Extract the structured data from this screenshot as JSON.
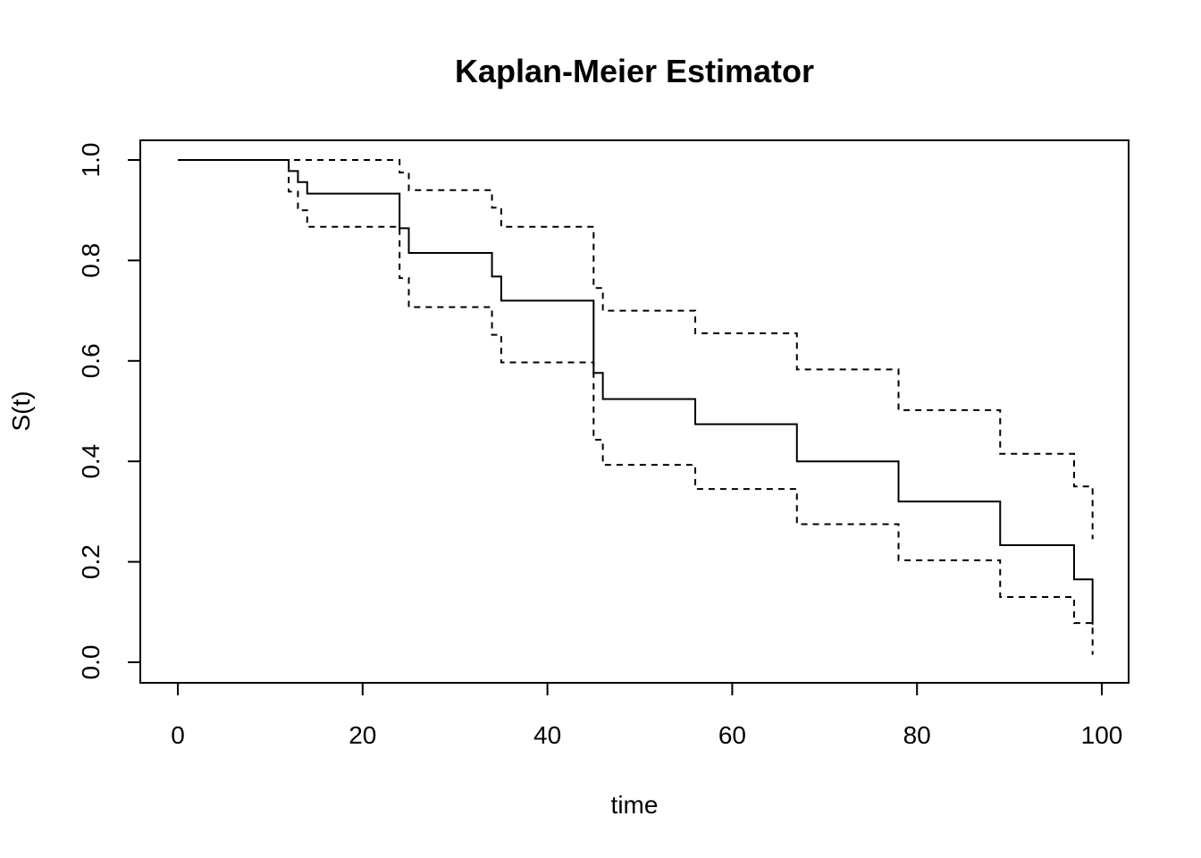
{
  "chart_data": {
    "type": "line",
    "title": "Kaplan-Meier Estimator",
    "xlabel": "time",
    "ylabel": "S(t)",
    "xlim": [
      0,
      100
    ],
    "ylim": [
      0,
      1
    ],
    "xticks": [
      "0",
      "20",
      "40",
      "60",
      "80",
      "100"
    ],
    "yticks": [
      "0.0",
      "0.2",
      "0.4",
      "0.6",
      "0.8",
      "1.0"
    ],
    "grid": false,
    "legend": "none",
    "step": true,
    "series": [
      {
        "style": "solid",
        "x": [
          0,
          12,
          13,
          14,
          24,
          25,
          34,
          35,
          45,
          46,
          56,
          67,
          78,
          89,
          97,
          99
        ],
        "y": [
          1.0,
          0.978,
          0.956,
          0.933,
          0.864,
          0.815,
          0.768,
          0.72,
          0.576,
          0.524,
          0.474,
          0.4,
          0.32,
          0.233,
          0.165,
          0.075
        ]
      },
      {
        "style": "dashed",
        "x": [
          0,
          12,
          24,
          25,
          34,
          35,
          45,
          46,
          56,
          67,
          78,
          89,
          97,
          99
        ],
        "y": [
          1.0,
          1.0,
          0.975,
          0.94,
          0.905,
          0.867,
          0.745,
          0.7,
          0.655,
          0.583,
          0.502,
          0.415,
          0.35,
          0.245
        ]
      },
      {
        "style": "dashed",
        "x": [
          0,
          12,
          13,
          14,
          24,
          25,
          34,
          35,
          45,
          46,
          56,
          67,
          78,
          89,
          97,
          99
        ],
        "y": [
          1.0,
          0.937,
          0.9,
          0.867,
          0.765,
          0.707,
          0.652,
          0.597,
          0.443,
          0.393,
          0.345,
          0.275,
          0.203,
          0.13,
          0.078,
          0.015
        ]
      }
    ]
  }
}
